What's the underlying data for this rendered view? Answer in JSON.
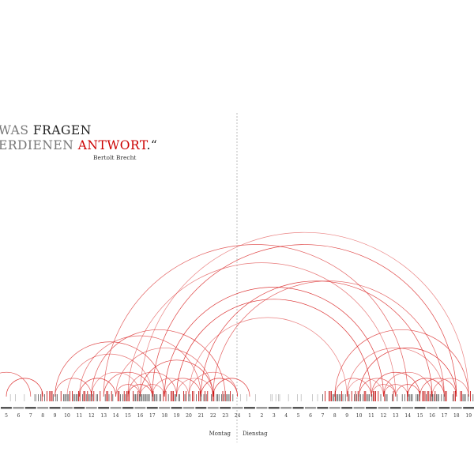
{
  "quote": {
    "line1_prefix": "WAS",
    "line1_word": "FRAGEN",
    "line2_prefix": "ERDIENEN",
    "line2_word": "ANTWORT",
    "line2_suffix": ".“",
    "author": "Bertolt Brecht"
  },
  "colors": {
    "arc": "#d81e1e",
    "tick_dark": "#555555",
    "tick_red": "#c00000",
    "tick_light": "#bbbbbb",
    "divider": "#aaaaaa"
  },
  "chart_data": {
    "type": "arc",
    "day_labels": [
      "Montag",
      "Dienstag"
    ],
    "x_tick_labels": [
      "5",
      "6",
      "7",
      "8",
      "9",
      "10",
      "11",
      "12",
      "13",
      "14",
      "15",
      "16",
      "17",
      "18",
      "19",
      "20",
      "21",
      "22",
      "23",
      "24",
      "1",
      "2",
      "3",
      "4",
      "5",
      "6",
      "7",
      "8",
      "9",
      "10",
      "11",
      "12",
      "13",
      "14",
      "15",
      "16",
      "17",
      "18",
      "19"
    ],
    "arcs": [
      {
        "from": "Montag 16",
        "to": "Dienstag 19"
      },
      {
        "from": "Montag 17",
        "to": "Dienstag 18"
      },
      {
        "from": "Montag 13",
        "to": "Dienstag 14"
      },
      {
        "from": "Montag 15",
        "to": "Dienstag 13"
      },
      {
        "from": "Montag 18",
        "to": "Dienstag 12"
      },
      {
        "from": "Montag 12",
        "to": "Montag 23"
      },
      {
        "from": "Montag 14",
        "to": "Montag 22"
      },
      {
        "from": "Montag 19",
        "to": "Dienstag 11"
      },
      {
        "from": "Montag 9",
        "to": "Montag 18"
      },
      {
        "from": "Montag 11",
        "to": "Montag 21"
      },
      {
        "from": "Montag 20",
        "to": "Dienstag 9"
      },
      {
        "from": "Montag 21",
        "to": "Dienstag 16"
      },
      {
        "from": "Montag 22",
        "to": "Dienstag 17"
      },
      {
        "from": "Montag 10",
        "to": "Montag 17"
      },
      {
        "from": "Montag 16",
        "to": "Montag 22"
      },
      {
        "from": "Dienstag 8",
        "to": "Dienstag 19"
      },
      {
        "from": "Dienstag 9",
        "to": "Dienstag 17"
      },
      {
        "from": "Dienstag 10",
        "to": "Dienstag 18"
      },
      {
        "from": "Dienstag 11",
        "to": "Dienstag 15"
      },
      {
        "from": "Dienstag 12",
        "to": "Dienstag 16"
      },
      {
        "from": "Montag 12",
        "to": "Montag 16"
      },
      {
        "from": "Montag 13",
        "to": "Montag 17"
      },
      {
        "from": "Montag 15",
        "to": "Montag 19"
      },
      {
        "from": "Montag 17",
        "to": "Montag 20"
      },
      {
        "from": "Montag 11",
        "to": "Montag 14"
      },
      {
        "from": "Montag 18",
        "to": "Montag 21"
      },
      {
        "from": "Montag 20",
        "to": "Montag 24"
      },
      {
        "from": "Montag 5",
        "to": "Montag 8"
      },
      {
        "from": "Montag 3",
        "to": "Montag 7"
      },
      {
        "from": "Montag 14",
        "to": "Montag 16"
      },
      {
        "from": "Montag 16",
        "to": "Montag 18"
      },
      {
        "from": "Montag 15",
        "to": "Montag 17"
      },
      {
        "from": "Montag 9",
        "to": "Montag 12"
      },
      {
        "from": "Montag 19",
        "to": "Montag 22"
      },
      {
        "from": "Montag 21",
        "to": "Montag 24"
      },
      {
        "from": "Dienstag 13",
        "to": "Dienstag 15"
      },
      {
        "from": "Dienstag 12",
        "to": "Dienstag 14"
      },
      {
        "from": "Dienstag 14",
        "to": "Dienstag 17"
      },
      {
        "from": "Dienstag 15",
        "to": "Dienstag 18"
      },
      {
        "from": "Dienstag 16",
        "to": "Dienstag 19"
      },
      {
        "from": "Dienstag 9",
        "to": "Dienstag 12"
      },
      {
        "from": "Dienstag 10",
        "to": "Dienstag 13"
      },
      {
        "from": "Dienstag 8",
        "to": "Dienstag 11"
      },
      {
        "from": "Dienstag 11",
        "to": "Dienstag 13"
      },
      {
        "from": "Montag 22",
        "to": "Dienstag 1"
      }
    ]
  }
}
